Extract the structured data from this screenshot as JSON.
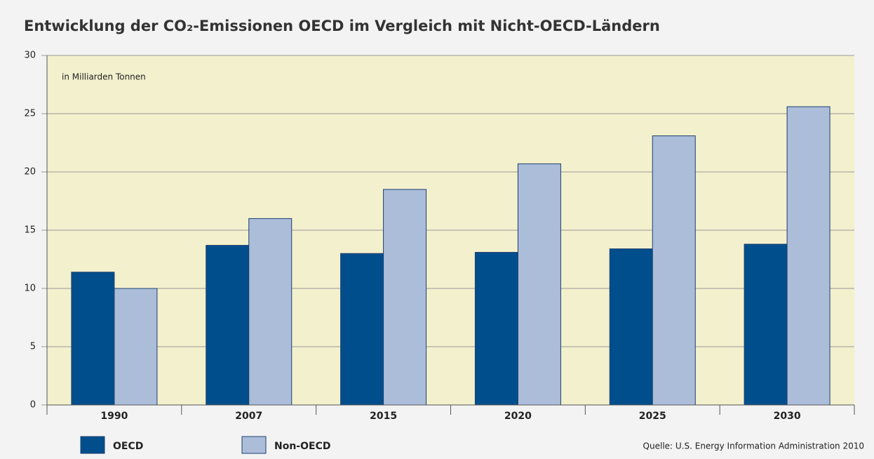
{
  "chart_data": {
    "type": "bar",
    "title": "Entwicklung der CO₂-Emissionen OECD im Vergleich mit Nicht-OECD-Ländern",
    "subtitle": "in Milliarden Tonnen",
    "source": "Quelle: U.S. Energy Information Administration 2010",
    "categories": [
      "1990",
      "2007",
      "2015",
      "2020",
      "2025",
      "2030"
    ],
    "series": [
      {
        "name": "OECD",
        "color": "#004f8c",
        "values": [
          11.4,
          13.7,
          13.0,
          13.1,
          13.4,
          13.8
        ]
      },
      {
        "name": "Non-OECD",
        "color": "#abbdd9",
        "values": [
          10.0,
          16.0,
          18.5,
          20.7,
          23.1,
          25.6
        ]
      }
    ],
    "ylim": [
      0,
      30
    ],
    "yticks": [
      0,
      5,
      10,
      15,
      20,
      25,
      30
    ],
    "grid": true
  }
}
